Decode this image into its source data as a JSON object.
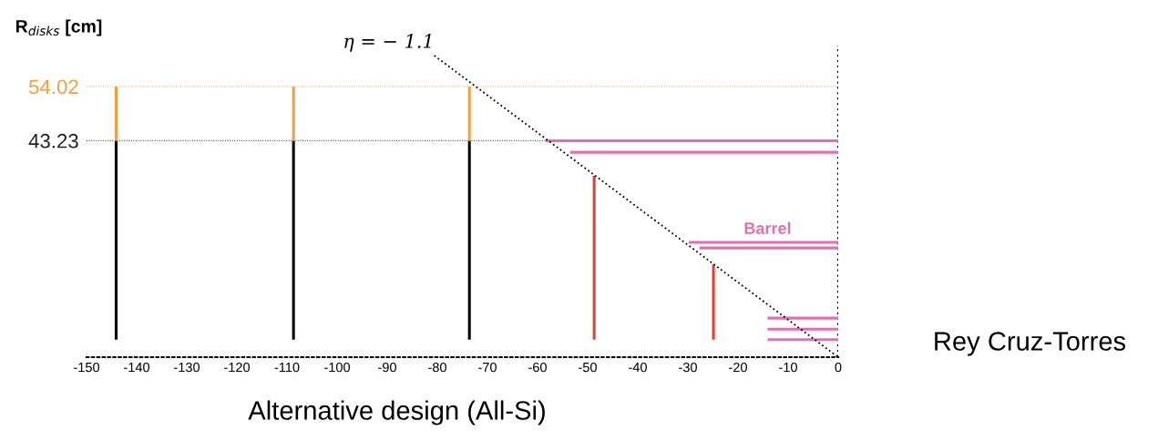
{
  "chart_data": {
    "type": "line",
    "title": "Alternative design (All-Si)",
    "ylabel": "R$_{disks}$ [cm]",
    "xlim": [
      -150,
      0
    ],
    "xticks": [
      -150,
      -140,
      -130,
      -120,
      -110,
      -100,
      -90,
      -80,
      -70,
      -60,
      -50,
      -40,
      -30,
      -20,
      -10,
      0
    ],
    "ylim": [
      0,
      62.2
    ],
    "yticks": [
      43.23,
      54.02
    ],
    "grid": false,
    "marker": "none",
    "series": [
      {
        "color": "#000000",
        "x": [
          -144.1,
          -144.1
        ],
        "values": [
          3.5,
          43.2
        ]
      },
      {
        "color": "#f0a040",
        "x": [
          -144.1,
          -144.1
        ],
        "values": [
          43.2,
          54.0
        ]
      },
      {
        "color": "#000000",
        "x": [
          -108.7,
          -108.7
        ],
        "values": [
          3.5,
          43.2
        ]
      },
      {
        "color": "#f0a040",
        "x": [
          -108.7,
          -108.7
        ],
        "values": [
          43.2,
          54.0
        ]
      },
      {
        "color": "#000000",
        "x": [
          -73.6,
          -73.6
        ],
        "values": [
          3.5,
          43.2
        ]
      },
      {
        "color": "#f0a040",
        "x": [
          -73.6,
          -73.6
        ],
        "values": [
          43.2,
          54.0
        ]
      },
      {
        "color": "#e04030",
        "x": [
          -48.7,
          -48.7
        ],
        "values": [
          3.5,
          36.2
        ]
      },
      {
        "color": "#e04030",
        "x": [
          -24.9,
          -24.9
        ],
        "values": [
          3.5,
          18.5
        ]
      },
      {
        "color": "#e070b0",
        "x": [
          -58.4,
          0
        ],
        "values": [
          43.2,
          43.2
        ]
      },
      {
        "color": "#e070b0",
        "x": [
          -53.5,
          0
        ],
        "values": [
          40.9,
          40.9
        ]
      },
      {
        "color": "#e070b0",
        "x": [
          -29.8,
          0
        ],
        "values": [
          22.9,
          22.9
        ]
      },
      {
        "color": "#e070b0",
        "x": [
          -27.7,
          0
        ],
        "values": [
          21.8,
          21.8
        ]
      },
      {
        "color": "#e070b0",
        "x": [
          -14.1,
          0
        ],
        "values": [
          7.8,
          7.8
        ]
      },
      {
        "color": "#e070b0",
        "x": [
          -14.1,
          0
        ],
        "values": [
          5.6,
          5.6
        ]
      },
      {
        "color": "#e070b0",
        "x": [
          -14.1,
          0
        ],
        "values": [
          3.5,
          3.5
        ]
      },
      {
        "color": "#000000",
        "x": [
          -80.6,
          0
        ],
        "values": [
          60.2,
          0
        ],
        "line_style": "dotted"
      }
    ],
    "ref_lines": [
      {
        "axis": "y",
        "value": 54.02,
        "color": "#f0a040",
        "line_style": "dotted"
      },
      {
        "axis": "y",
        "value": 43.23,
        "color": "#222222",
        "line_style": "dotted"
      },
      {
        "axis": "x",
        "value": 0,
        "color": "#000000",
        "line_style": "dotted"
      }
    ],
    "annotations": [
      {
        "text": "η = − 1.1",
        "x": -80.6,
        "y": 60.2
      },
      {
        "text": "Barrel",
        "x": -14.1,
        "y": 22.9
      },
      "Rey Cruz-Torres"
    ]
  }
}
